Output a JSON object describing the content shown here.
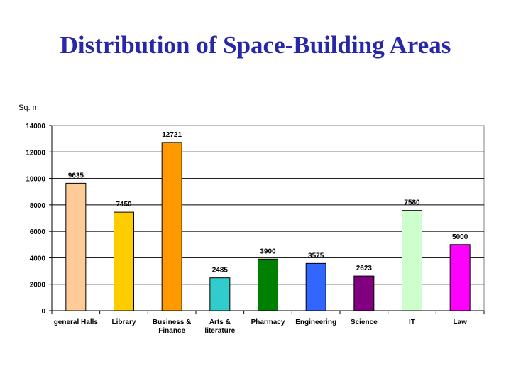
{
  "chart_data": {
    "type": "bar",
    "title": "Distribution of Space-Building Areas",
    "ylabel": "Sq. m",
    "xlabel": "",
    "ylim": [
      0,
      14000
    ],
    "yticks": [
      "0",
      "2000",
      "4000",
      "6000",
      "8000",
      "10000",
      "12000",
      "14000"
    ],
    "grid": true,
    "legend": "none",
    "categories": [
      [
        "general Halls"
      ],
      [
        "Library"
      ],
      [
        "Business &",
        "Finance"
      ],
      [
        "Arts &",
        "literature"
      ],
      [
        "Pharmacy"
      ],
      [
        "Engineering"
      ],
      [
        "Science"
      ],
      [
        "IT"
      ],
      [
        "Law"
      ]
    ],
    "values": [
      9635,
      7450,
      12721,
      2485,
      3900,
      3575,
      2623,
      7580,
      5000
    ],
    "data_labels": [
      "9635",
      "7450",
      "12721",
      "2485",
      "3900",
      "3575",
      "2623",
      "7580",
      "5000"
    ],
    "colors": [
      "#FFCC99",
      "#FFCC00",
      "#FF9900",
      "#33CCCC",
      "#008000",
      "#3366FF",
      "#800080",
      "#CCFFCC",
      "#FF00FF"
    ]
  }
}
